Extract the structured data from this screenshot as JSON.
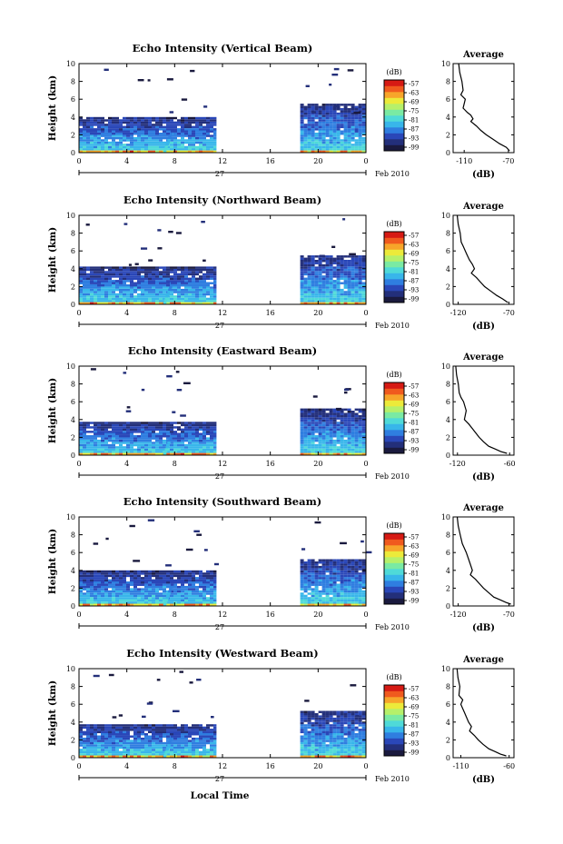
{
  "colors": {
    "colormap": [
      "#1a1a3e",
      "#232f7a",
      "#2a47b8",
      "#2f7ee0",
      "#38b6ea",
      "#4fdad8",
      "#7aeaa3",
      "#b6f06a",
      "#ecea3a",
      "#f7a52a",
      "#f05a1e",
      "#d61a14"
    ],
    "axis": "#000000",
    "line": "#000000",
    "background": "#ffffff"
  },
  "date_label": "Feb 2010",
  "day_label": "27",
  "xlabel_bottom": "Local Time",
  "chart_data": [
    {
      "type": "heatmap",
      "title": "Echo Intensity (Vertical Beam)",
      "ylabel": "Height (km)",
      "xlim": [
        0,
        24
      ],
      "ylim": [
        0,
        10
      ],
      "xticks": [
        "0",
        "4",
        "8",
        "12",
        "16",
        "20",
        "0"
      ],
      "yticks": [
        "0",
        "2",
        "4",
        "6",
        "8",
        "10"
      ],
      "data_gap_hours": [
        11.5,
        18.5
      ],
      "top_height_km": {
        "left": 4.0,
        "right": 5.5
      },
      "colorbar": {
        "label": "(dB)",
        "ticks": [
          "-57",
          "-63",
          "-69",
          "-75",
          "-81",
          "-87",
          "-93",
          "-99"
        ]
      },
      "average_profile": {
        "title": "Average",
        "xlabel": "(dB)",
        "xticks": [
          "-110",
          "-70"
        ],
        "xlim": [
          -120,
          -65
        ],
        "yticks": [
          "0",
          "2",
          "4",
          "6",
          "8",
          "10"
        ],
        "x": [
          -115,
          -114,
          -112,
          -111,
          -113,
          -109,
          -111,
          -107,
          -104,
          -102,
          -104,
          -99,
          -95,
          -90,
          -84,
          -78,
          -72,
          -69
        ],
        "y": [
          10.0,
          9.0,
          8.0,
          7.0,
          6.5,
          6.0,
          5.0,
          4.5,
          4.2,
          3.8,
          3.5,
          3.0,
          2.5,
          2.0,
          1.5,
          1.0,
          0.6,
          0.2
        ]
      }
    },
    {
      "type": "heatmap",
      "title": "Echo Intensity (Northward Beam)",
      "ylabel": "Height (km)",
      "xlim": [
        0,
        24
      ],
      "ylim": [
        0,
        10
      ],
      "xticks": [
        "0",
        "4",
        "8",
        "12",
        "16",
        "20",
        "0"
      ],
      "yticks": [
        "0",
        "2",
        "4",
        "6",
        "8",
        "10"
      ],
      "data_gap_hours": [
        11.5,
        18.5
      ],
      "top_height_km": {
        "left": 4.2,
        "right": 5.6
      },
      "colorbar": {
        "label": "(dB)",
        "ticks": [
          "-57",
          "-63",
          "-69",
          "-75",
          "-81",
          "-87",
          "-93",
          "-99"
        ]
      },
      "average_profile": {
        "title": "Average",
        "xlabel": "(dB)",
        "xticks": [
          "-120",
          "-70"
        ],
        "xlim": [
          -125,
          -65
        ],
        "yticks": [
          "0",
          "2",
          "4",
          "6",
          "8",
          "10"
        ],
        "x": [
          -121,
          -120,
          -118,
          -117,
          -115,
          -113,
          -111,
          -109,
          -106,
          -104,
          -107,
          -102,
          -98,
          -94,
          -88,
          -82,
          -76,
          -71
        ],
        "y": [
          10.0,
          9.0,
          8.0,
          7.0,
          6.5,
          6.0,
          5.5,
          5.0,
          4.5,
          4.0,
          3.5,
          3.0,
          2.5,
          2.0,
          1.5,
          1.0,
          0.6,
          0.2
        ]
      }
    },
    {
      "type": "heatmap",
      "title": "Echo Intensity (Eastward Beam)",
      "ylabel": "Height (km)",
      "xlim": [
        0,
        24
      ],
      "ylim": [
        0,
        10
      ],
      "xticks": [
        "0",
        "4",
        "8",
        "12",
        "16",
        "20",
        "0"
      ],
      "yticks": [
        "0",
        "2",
        "4",
        "6",
        "8",
        "10"
      ],
      "data_gap_hours": [
        11.5,
        18.5
      ],
      "top_height_km": {
        "left": 3.8,
        "right": 5.2
      },
      "colorbar": {
        "label": "(dB)",
        "ticks": [
          "-57",
          "-63",
          "-69",
          "-75",
          "-81",
          "-87",
          "-93",
          "-99"
        ]
      },
      "average_profile": {
        "title": "Average",
        "xlabel": "(dB)",
        "xticks": [
          "-120",
          "-60"
        ],
        "xlim": [
          -125,
          -55
        ],
        "yticks": [
          "0",
          "2",
          "4",
          "6",
          "8",
          "10"
        ],
        "x": [
          -122,
          -121,
          -119,
          -118,
          -116,
          -113,
          -110,
          -112,
          -107,
          -103,
          -99,
          -95,
          -90,
          -84,
          -77,
          -70,
          -63
        ],
        "y": [
          10.0,
          9.0,
          8.0,
          7.0,
          6.5,
          6.0,
          5.0,
          4.0,
          3.5,
          3.0,
          2.5,
          2.0,
          1.5,
          1.0,
          0.7,
          0.4,
          0.2
        ]
      }
    },
    {
      "type": "heatmap",
      "title": "Echo Intensity (Southward Beam)",
      "ylabel": "Height (km)",
      "xlim": [
        0,
        24
      ],
      "ylim": [
        0,
        10
      ],
      "xticks": [
        "0",
        "4",
        "8",
        "12",
        "16",
        "20",
        "0"
      ],
      "yticks": [
        "0",
        "2",
        "4",
        "6",
        "8",
        "10"
      ],
      "data_gap_hours": [
        11.5,
        18.5
      ],
      "top_height_km": {
        "left": 4.0,
        "right": 5.4
      },
      "colorbar": {
        "label": "(dB)",
        "ticks": [
          "-57",
          "-63",
          "-69",
          "-75",
          "-81",
          "-87",
          "-93",
          "-99"
        ]
      },
      "average_profile": {
        "title": "Average",
        "xlabel": "(dB)",
        "xticks": [
          "-120",
          "-70"
        ],
        "xlim": [
          -125,
          -65
        ],
        "yticks": [
          "0",
          "2",
          "4",
          "6",
          "8",
          "10"
        ],
        "x": [
          -121,
          -120,
          -118,
          -116,
          -114,
          -112,
          -109,
          -106,
          -108,
          -103,
          -99,
          -95,
          -90,
          -85,
          -79,
          -73,
          -68
        ],
        "y": [
          10.0,
          9.0,
          8.0,
          7.0,
          6.5,
          6.0,
          5.0,
          4.0,
          3.5,
          3.0,
          2.5,
          2.0,
          1.5,
          1.0,
          0.7,
          0.4,
          0.2
        ]
      }
    },
    {
      "type": "heatmap",
      "title": "Echo Intensity (Westward Beam)",
      "ylabel": "Height (km)",
      "xlim": [
        0,
        24
      ],
      "ylim": [
        0,
        10
      ],
      "xticks": [
        "0",
        "4",
        "8",
        "12",
        "16",
        "20",
        "0"
      ],
      "yticks": [
        "0",
        "2",
        "4",
        "6",
        "8",
        "10"
      ],
      "data_gap_hours": [
        11.5,
        18.5
      ],
      "top_height_km": {
        "left": 3.9,
        "right": 5.3
      },
      "colorbar": {
        "label": "(dB)",
        "ticks": [
          "-57",
          "-63",
          "-69",
          "-75",
          "-81",
          "-87",
          "-93",
          "-99"
        ]
      },
      "average_profile": {
        "title": "Average",
        "xlabel": "(dB)",
        "xticks": [
          "-110",
          "-60"
        ],
        "xlim": [
          -118,
          -55
        ],
        "yticks": [
          "0",
          "2",
          "4",
          "6",
          "8",
          "10"
        ],
        "x": [
          -114,
          -113,
          -111,
          -112,
          -108,
          -110,
          -106,
          -102,
          -99,
          -101,
          -96,
          -92,
          -87,
          -81,
          -75,
          -69,
          -63
        ],
        "y": [
          10.0,
          9.0,
          8.0,
          7.0,
          6.5,
          6.0,
          5.0,
          4.0,
          3.5,
          3.0,
          2.5,
          2.0,
          1.5,
          1.0,
          0.7,
          0.4,
          0.2
        ]
      }
    }
  ]
}
